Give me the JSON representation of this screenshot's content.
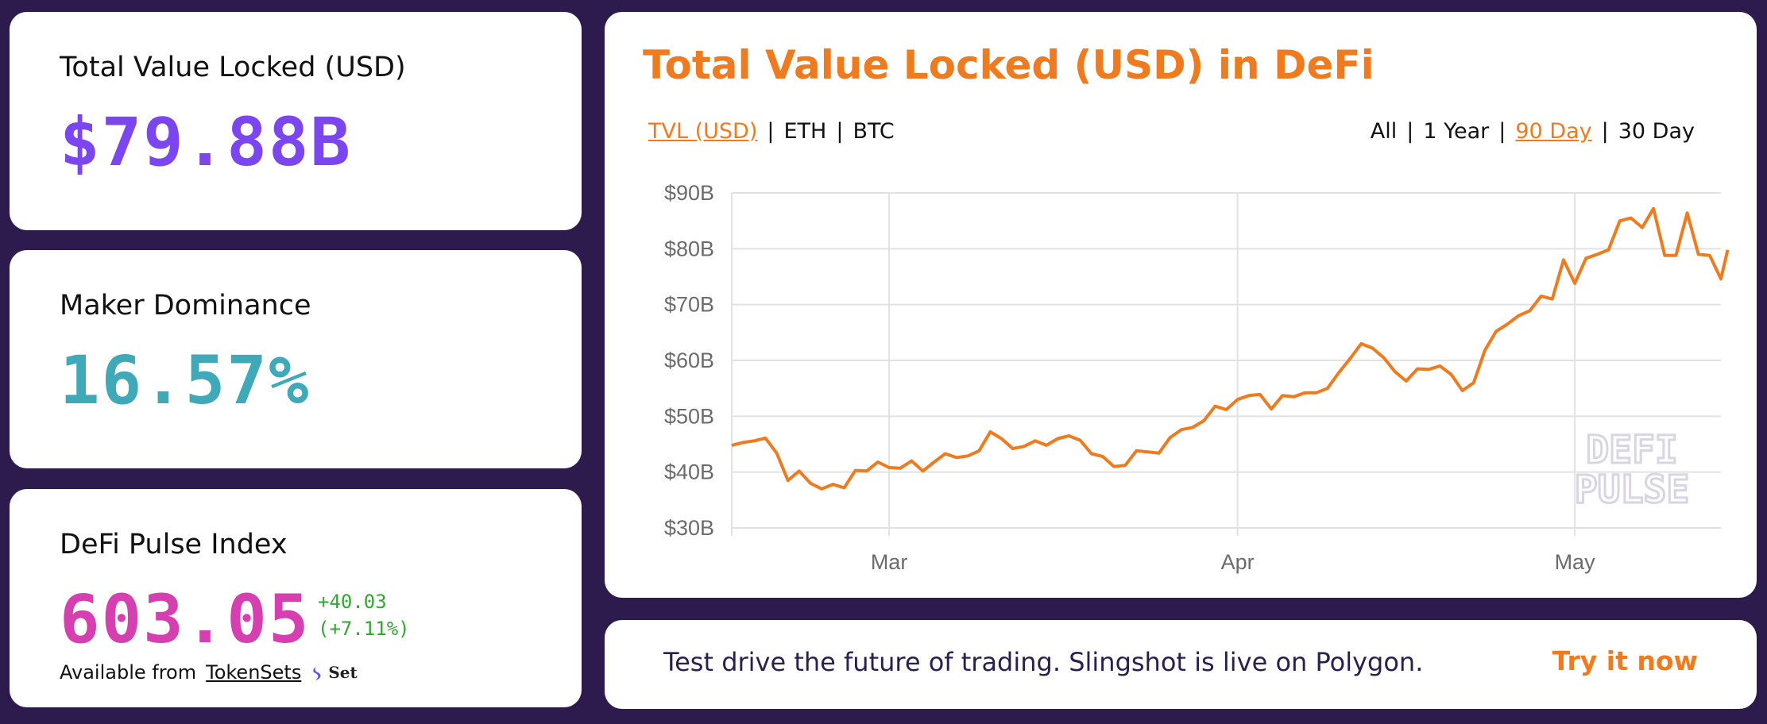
{
  "colors": {
    "background": "#2d1b4e",
    "card": "#ffffff",
    "tvl_value": "#7b45f0",
    "maker_value": "#3fa9b7",
    "dpi_value": "#d63fb0",
    "positive_change": "#2eaa2e",
    "accent": "#f07a1e",
    "line": "#f07a1e",
    "grid": "#e2e2e2",
    "axis_text": "#6b6b6b",
    "watermark": "#d9d5e3"
  },
  "tvl_card": {
    "label": "Total Value Locked (USD)",
    "value": "$79.88B"
  },
  "maker_card": {
    "label": "Maker Dominance",
    "value": "16.57%"
  },
  "dpi_card": {
    "label": "DeFi Pulse Index",
    "value": "603.05",
    "change_abs": "+40.03",
    "change_pct": "(+7.11%)",
    "available_text": "Available from",
    "link_text": "TokenSets",
    "logo_icon": "set-logo-icon",
    "logo_text": "Set"
  },
  "chart_card": {
    "title": "Total Value Locked (USD) in DeFi",
    "unit_toggles": [
      {
        "label": "TVL (USD)",
        "active": true
      },
      {
        "label": "ETH",
        "active": false
      },
      {
        "label": "BTC",
        "active": false
      }
    ],
    "range_toggles": [
      {
        "label": "All",
        "active": false
      },
      {
        "label": "1 Year",
        "active": false
      },
      {
        "label": "90 Day",
        "active": true
      },
      {
        "label": "30 Day",
        "active": false
      }
    ],
    "watermark_line1": "DEFI",
    "watermark_line2": "PULSE"
  },
  "chart_data": {
    "type": "line",
    "title": "Total Value Locked (USD) in DeFi",
    "xlabel": "",
    "ylabel": "",
    "ylim": [
      30,
      90
    ],
    "y_unit": "USD billions",
    "y_ticks": [
      "$30B",
      "$40B",
      "$50B",
      "$60B",
      "$70B",
      "$80B",
      "$90B"
    ],
    "x_ticks": [
      {
        "label": "Mar",
        "day": 14
      },
      {
        "label": "Apr",
        "day": 45
      },
      {
        "label": "May",
        "day": 75
      }
    ],
    "xlim": [
      0,
      88
    ],
    "grid": true,
    "legend": "none",
    "series": [
      {
        "values": [
          [
            0,
            44.8
          ],
          [
            1,
            45.3
          ],
          [
            2,
            45.6
          ],
          [
            3,
            46.1
          ],
          [
            4,
            43.4
          ],
          [
            5,
            38.5
          ],
          [
            6,
            40.2
          ],
          [
            7,
            38.0
          ],
          [
            8,
            37.0
          ],
          [
            9,
            37.8
          ],
          [
            10,
            37.2
          ],
          [
            11,
            40.3
          ],
          [
            12,
            40.2
          ],
          [
            13,
            41.8
          ],
          [
            14,
            40.8
          ],
          [
            15,
            40.7
          ],
          [
            16,
            42.0
          ],
          [
            17,
            40.2
          ],
          [
            18,
            41.8
          ],
          [
            19,
            43.3
          ],
          [
            20,
            42.6
          ],
          [
            21,
            42.9
          ],
          [
            22,
            43.8
          ],
          [
            23,
            47.2
          ],
          [
            24,
            46.0
          ],
          [
            25,
            44.2
          ],
          [
            26,
            44.6
          ],
          [
            27,
            45.6
          ],
          [
            28,
            44.8
          ],
          [
            29,
            46.0
          ],
          [
            30,
            46.5
          ],
          [
            31,
            45.7
          ],
          [
            32,
            43.3
          ],
          [
            33,
            42.8
          ],
          [
            34,
            41.0
          ],
          [
            35,
            41.2
          ],
          [
            36,
            43.8
          ],
          [
            37,
            43.6
          ],
          [
            38,
            43.4
          ],
          [
            39,
            46.2
          ],
          [
            40,
            47.6
          ],
          [
            41,
            48.0
          ],
          [
            42,
            49.2
          ],
          [
            43,
            51.8
          ],
          [
            44,
            51.2
          ],
          [
            45,
            53.0
          ],
          [
            46,
            53.7
          ],
          [
            47,
            53.9
          ],
          [
            48,
            51.3
          ],
          [
            49,
            53.7
          ],
          [
            50,
            53.5
          ],
          [
            51,
            54.2
          ],
          [
            52,
            54.2
          ],
          [
            53,
            55.0
          ],
          [
            54,
            57.8
          ],
          [
            55,
            60.3
          ],
          [
            56,
            63.0
          ],
          [
            57,
            62.2
          ],
          [
            58,
            60.5
          ],
          [
            59,
            58.0
          ],
          [
            60,
            56.3
          ],
          [
            61,
            58.5
          ],
          [
            62,
            58.4
          ],
          [
            63,
            59.0
          ],
          [
            64,
            57.5
          ],
          [
            65,
            54.6
          ],
          [
            66,
            56.0
          ],
          [
            67,
            61.8
          ],
          [
            68,
            65.2
          ],
          [
            69,
            66.5
          ],
          [
            70,
            68.0
          ],
          [
            71,
            68.9
          ],
          [
            72,
            71.5
          ],
          [
            73,
            71.0
          ],
          [
            74,
            78.0
          ],
          [
            75,
            73.8
          ],
          [
            76,
            78.3
          ],
          [
            77,
            79.0
          ],
          [
            78,
            79.8
          ],
          [
            79,
            85.0
          ],
          [
            80,
            85.5
          ],
          [
            81,
            83.8
          ],
          [
            82,
            87.2
          ],
          [
            83,
            78.8
          ],
          [
            84,
            78.8
          ],
          [
            85,
            86.4
          ],
          [
            86,
            79.0
          ],
          [
            87,
            78.8
          ],
          [
            88,
            74.6
          ],
          [
            88.6,
            79.8
          ]
        ]
      }
    ]
  },
  "banner": {
    "text": "Test drive the future of trading. Slingshot is live on Polygon.",
    "cta": "Try it now"
  }
}
